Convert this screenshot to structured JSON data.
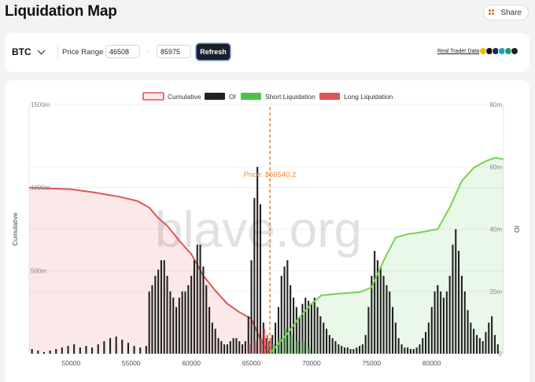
{
  "header": {
    "title": "Liquidation Map",
    "share_label": "Share"
  },
  "toolbar": {
    "coin": "BTC",
    "price_range_label": "Price Range",
    "range_min": "46508",
    "range_max": "85975",
    "refresh_label": "Refresh",
    "real_trader_label": "Real Trader Data"
  },
  "exchange_icons": [
    "binance-icon",
    "okx-icon",
    "bybit-icon",
    "bitget-icon",
    "deribit-icon",
    "other-icon"
  ],
  "colors": {
    "cumulative": "#e05555",
    "oi": "#222222",
    "short": "#4cc24c",
    "long": "#e05555",
    "price": "#f0883a"
  },
  "watermark": "blave.org",
  "chart_data": {
    "type": "bar",
    "legend": [
      "Cumulative",
      "OI",
      "Short Liquidation",
      "Long Liquidation"
    ],
    "legend_position": "top",
    "ylabel_left": "Cumulative",
    "ylabel_right": "IO",
    "x_range": [
      46508,
      85975
    ],
    "x_ticks": [
      "50000",
      "55000",
      "60000",
      "65000",
      "70000",
      "75000",
      "80000"
    ],
    "y_left_range": [
      0,
      1500
    ],
    "y_left_ticks": [
      "1500m",
      "1000m",
      "500m"
    ],
    "y_right_range": [
      0,
      80
    ],
    "y_right_ticks": [
      "80m",
      "60m",
      "40m",
      "20m",
      "0"
    ],
    "current_price": 66540.2,
    "price_label": "Price: $66540.2",
    "cumulative_long": [
      [
        46508,
        1000
      ],
      [
        50000,
        990
      ],
      [
        52000,
        970
      ],
      [
        54000,
        945
      ],
      [
        55500,
        920
      ],
      [
        56500,
        880
      ],
      [
        57200,
        820
      ],
      [
        58000,
        770
      ],
      [
        59000,
        680
      ],
      [
        60000,
        600
      ],
      [
        61000,
        470
      ],
      [
        62000,
        380
      ],
      [
        63000,
        300
      ],
      [
        64000,
        250
      ],
      [
        65000,
        210
      ],
      [
        65800,
        80
      ],
      [
        66540,
        0
      ]
    ],
    "cumulative_short": [
      [
        66540,
        0
      ],
      [
        67000,
        40
      ],
      [
        68000,
        120
      ],
      [
        69000,
        220
      ],
      [
        70000,
        300
      ],
      [
        70800,
        350
      ],
      [
        72000,
        360
      ],
      [
        74000,
        370
      ],
      [
        75000,
        400
      ],
      [
        76000,
        560
      ],
      [
        77000,
        700
      ],
      [
        78000,
        720
      ],
      [
        79000,
        730
      ],
      [
        80500,
        750
      ],
      [
        81500,
        880
      ],
      [
        82500,
        1040
      ],
      [
        83500,
        1120
      ],
      [
        84500,
        1160
      ],
      [
        85300,
        1180
      ],
      [
        85975,
        1170
      ]
    ],
    "oi_bars": [
      [
        46750,
        1.5
      ],
      [
        47250,
        1.0
      ],
      [
        47750,
        0.5
      ],
      [
        48250,
        1.0
      ],
      [
        48750,
        1.5
      ],
      [
        49250,
        2.0
      ],
      [
        49750,
        2.5
      ],
      [
        50250,
        3.0
      ],
      [
        50750,
        2.0
      ],
      [
        51250,
        2.5
      ],
      [
        51750,
        2.0
      ],
      [
        52250,
        3.0
      ],
      [
        52750,
        4.0
      ],
      [
        53250,
        5.0
      ],
      [
        53750,
        5.5
      ],
      [
        54250,
        4.5
      ],
      [
        54750,
        3.5
      ],
      [
        55250,
        2.5
      ],
      [
        55750,
        2.0
      ],
      [
        56250,
        2.5
      ],
      [
        56500,
        20
      ],
      [
        56750,
        22
      ],
      [
        57000,
        25
      ],
      [
        57250,
        27
      ],
      [
        57500,
        30
      ],
      [
        57750,
        30
      ],
      [
        58000,
        25
      ],
      [
        58250,
        20
      ],
      [
        58500,
        18
      ],
      [
        58750,
        15
      ],
      [
        59000,
        18
      ],
      [
        59250,
        20
      ],
      [
        59500,
        20
      ],
      [
        59750,
        22
      ],
      [
        60000,
        25
      ],
      [
        60250,
        30
      ],
      [
        60500,
        35
      ],
      [
        60750,
        35
      ],
      [
        61000,
        28
      ],
      [
        61250,
        22
      ],
      [
        61500,
        15
      ],
      [
        61750,
        10
      ],
      [
        62000,
        8
      ],
      [
        62250,
        5
      ],
      [
        62500,
        4
      ],
      [
        62750,
        3
      ],
      [
        63000,
        3
      ],
      [
        63250,
        4
      ],
      [
        63500,
        5
      ],
      [
        63750,
        5
      ],
      [
        64000,
        4
      ],
      [
        64250,
        3
      ],
      [
        64500,
        4
      ],
      [
        64750,
        12
      ],
      [
        65000,
        30
      ],
      [
        65250,
        50
      ],
      [
        65500,
        60
      ],
      [
        65750,
        48
      ],
      [
        66000,
        10
      ],
      [
        66250,
        5
      ],
      [
        66500,
        4
      ],
      [
        66750,
        6
      ],
      [
        67000,
        10
      ],
      [
        67250,
        15
      ],
      [
        67500,
        25
      ],
      [
        67750,
        28
      ],
      [
        68000,
        30
      ],
      [
        68250,
        22
      ],
      [
        68500,
        18
      ],
      [
        68750,
        15
      ],
      [
        69000,
        12
      ],
      [
        69250,
        16
      ],
      [
        69500,
        18
      ],
      [
        69750,
        17
      ],
      [
        70000,
        16
      ],
      [
        70250,
        18
      ],
      [
        70500,
        15
      ],
      [
        70750,
        12
      ],
      [
        71000,
        10
      ],
      [
        71250,
        8
      ],
      [
        71500,
        6
      ],
      [
        71750,
        5
      ],
      [
        72000,
        4
      ],
      [
        72250,
        3
      ],
      [
        72500,
        2.5
      ],
      [
        72750,
        2
      ],
      [
        73000,
        2
      ],
      [
        73250,
        1.5
      ],
      [
        73500,
        1.5
      ],
      [
        73750,
        2
      ],
      [
        74000,
        2.5
      ],
      [
        74250,
        3
      ],
      [
        74500,
        6
      ],
      [
        74750,
        15
      ],
      [
        75000,
        25
      ],
      [
        75250,
        33
      ],
      [
        75500,
        30
      ],
      [
        75750,
        28
      ],
      [
        76000,
        25
      ],
      [
        76250,
        22
      ],
      [
        76500,
        20
      ],
      [
        76750,
        15
      ],
      [
        77000,
        10
      ],
      [
        77250,
        5
      ],
      [
        77500,
        3
      ],
      [
        77750,
        2
      ],
      [
        78000,
        2
      ],
      [
        78250,
        1.5
      ],
      [
        78500,
        1.5
      ],
      [
        78750,
        2
      ],
      [
        79000,
        3
      ],
      [
        79250,
        5
      ],
      [
        79500,
        7
      ],
      [
        79750,
        10
      ],
      [
        80000,
        15
      ],
      [
        80250,
        20
      ],
      [
        80500,
        22
      ],
      [
        80750,
        20
      ],
      [
        81000,
        18
      ],
      [
        81250,
        20
      ],
      [
        81500,
        25
      ],
      [
        81750,
        35
      ],
      [
        82000,
        40
      ],
      [
        82250,
        33
      ],
      [
        82500,
        25
      ],
      [
        82750,
        20
      ],
      [
        83000,
        14
      ],
      [
        83250,
        10
      ],
      [
        83500,
        8
      ],
      [
        83750,
        6
      ],
      [
        84000,
        5
      ],
      [
        84250,
        4
      ],
      [
        84500,
        7
      ],
      [
        84750,
        10
      ],
      [
        85000,
        12
      ],
      [
        85250,
        6
      ],
      [
        85500,
        3
      ]
    ],
    "short_liq_bars": [
      [
        66750,
        3
      ],
      [
        67250,
        5
      ],
      [
        67750,
        8
      ],
      [
        68250,
        6
      ],
      [
        68750,
        4
      ],
      [
        69250,
        4
      ],
      [
        69750,
        2
      ]
    ],
    "long_liq_bars": [
      [
        64750,
        3
      ],
      [
        65250,
        4
      ],
      [
        65750,
        5
      ],
      [
        66000,
        8
      ],
      [
        66250,
        6
      ],
      [
        66500,
        5
      ]
    ]
  }
}
